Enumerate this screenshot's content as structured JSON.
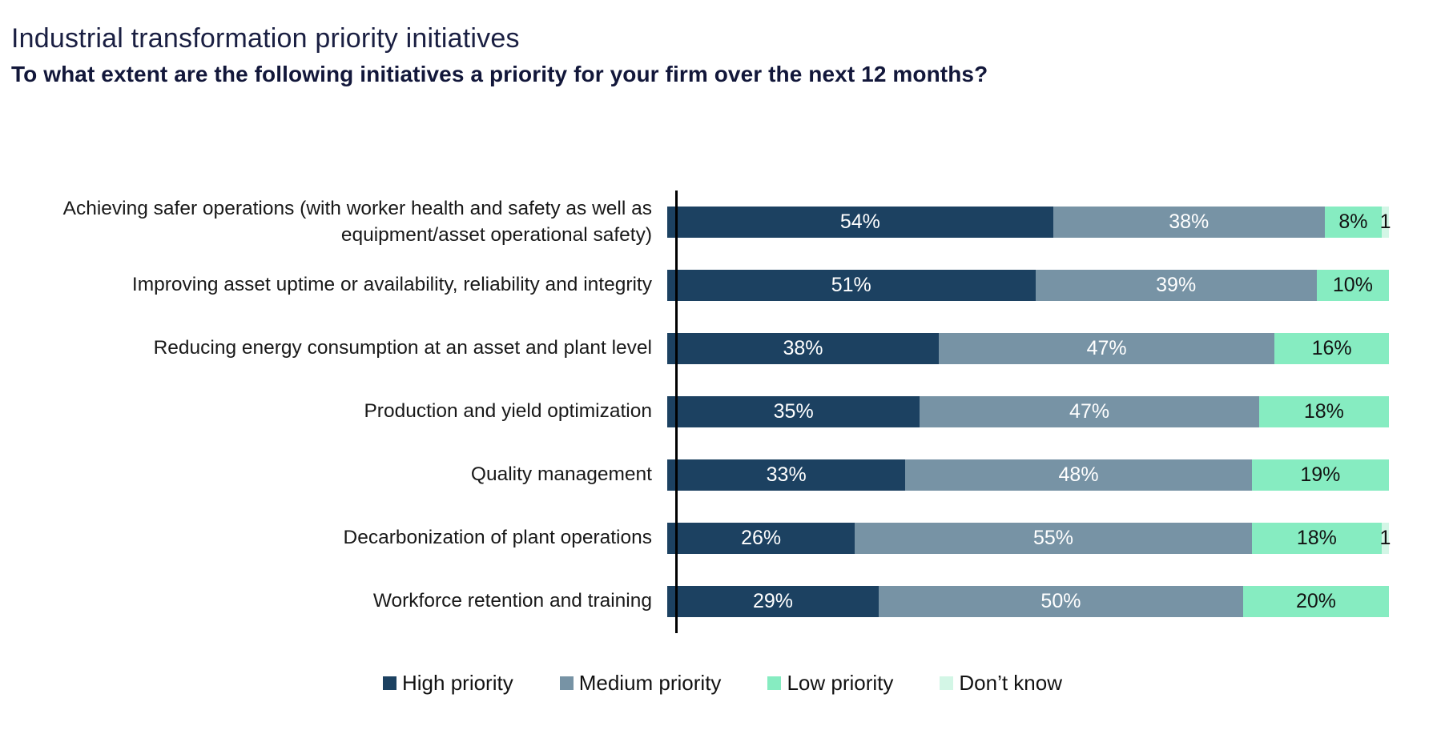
{
  "page": {
    "title": "Industrial transformation priority initiatives",
    "subtitle": "To what extent are the following initiatives a priority for your firm over the next 12 months?"
  },
  "chart_data": {
    "type": "bar",
    "orientation": "horizontal",
    "stacked": true,
    "normalized_to_100_percent": true,
    "unit": "percent",
    "grid": "off",
    "legend_position": "bottom",
    "axis": {
      "y_axis_line_color": "#000000",
      "x_ticks_visible": false
    },
    "title": "Industrial transformation priority initiatives",
    "subtitle": "To what extent are the following initiatives a priority for your firm over the next 12 months?",
    "series": [
      {
        "name": "High priority",
        "slug": "high-priority",
        "color": "#1c4161",
        "label_color": "#ffffff"
      },
      {
        "name": "Medium priority",
        "slug": "medium-priority",
        "color": "#7793a5",
        "label_color": "#ffffff"
      },
      {
        "name": "Low priority",
        "slug": "low-priority",
        "color": "#86ecc1",
        "label_color": "#121212"
      },
      {
        "name": "Don’t know",
        "slug": "dont-know",
        "color": "#d3f6e6",
        "label_color": "#121212"
      }
    ],
    "categories": [
      "Achieving safer operations (with worker health and safety as well as equipment/asset operational safety)",
      "Improving asset uptime or availability, reliability and integrity",
      "Reducing energy consumption at an asset and plant level",
      "Production and yield optimization",
      "Quality management",
      "Decarbonization of plant operations",
      "Workforce retention and training"
    ],
    "rows": [
      {
        "label": "Achieving safer operations (with worker health and safety as well as equipment/asset operational safety)",
        "values": [
          54,
          38,
          8,
          1
        ],
        "value_labels": [
          "54%",
          "38%",
          "8%",
          "1"
        ]
      },
      {
        "label": "Improving asset uptime or availability, reliability and integrity",
        "values": [
          51,
          39,
          10,
          0
        ],
        "value_labels": [
          "51%",
          "39%",
          "10%",
          ""
        ]
      },
      {
        "label": "Reducing energy consumption at an asset and plant level",
        "values": [
          38,
          47,
          16,
          0
        ],
        "value_labels": [
          "38%",
          "47%",
          "16%",
          ""
        ]
      },
      {
        "label": "Production and yield optimization",
        "values": [
          35,
          47,
          18,
          0
        ],
        "value_labels": [
          "35%",
          "47%",
          "18%",
          ""
        ]
      },
      {
        "label": "Quality management",
        "values": [
          33,
          48,
          19,
          0
        ],
        "value_labels": [
          "33%",
          "48%",
          "19%",
          ""
        ]
      },
      {
        "label": "Decarbonization of plant operations",
        "values": [
          26,
          55,
          18,
          1
        ],
        "value_labels": [
          "26%",
          "55%",
          "18%",
          "1"
        ]
      },
      {
        "label": "Workforce retention and training",
        "values": [
          29,
          50,
          20,
          0
        ],
        "value_labels": [
          "29%",
          "50%",
          "20%",
          ""
        ]
      }
    ]
  }
}
